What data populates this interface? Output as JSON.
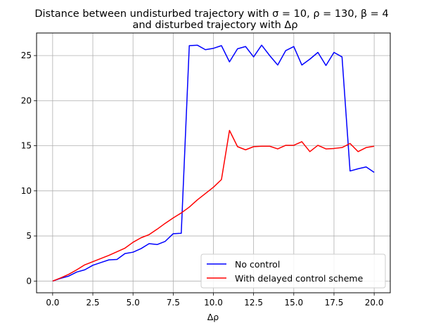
{
  "chart_data": {
    "type": "line",
    "title_line1": "Distance between undisturbed trajectory with σ = 10, ρ = 130, β = 4",
    "title_line2": "and disturbed trajectory with Δρ",
    "xlabel": "Δρ",
    "ylabel": "",
    "xlim": [
      -1.0,
      21.0
    ],
    "ylim": [
      -1.3,
      27.5
    ],
    "xticks": [
      0.0,
      2.5,
      5.0,
      7.5,
      10.0,
      12.5,
      15.0,
      17.5,
      20.0
    ],
    "xtick_labels": [
      "0.0",
      "2.5",
      "5.0",
      "7.5",
      "10.0",
      "12.5",
      "15.0",
      "17.5",
      "20.0"
    ],
    "yticks": [
      0,
      5,
      10,
      15,
      20,
      25
    ],
    "ytick_labels": [
      "0",
      "5",
      "10",
      "15",
      "20",
      "25"
    ],
    "grid": true,
    "legend_position": "lower-right",
    "x": [
      0.0,
      0.5,
      1.0,
      1.5,
      2.0,
      2.5,
      3.0,
      3.5,
      4.0,
      4.5,
      5.0,
      5.5,
      6.0,
      6.5,
      7.0,
      7.5,
      8.0,
      8.5,
      9.0,
      9.5,
      10.0,
      10.5,
      11.0,
      11.5,
      12.0,
      12.5,
      13.0,
      13.5,
      14.0,
      14.5,
      15.0,
      15.5,
      16.0,
      16.5,
      17.0,
      17.5,
      18.0,
      18.5,
      19.0,
      19.5,
      20.0
    ],
    "series": [
      {
        "name": "No control",
        "color": "#0000ff",
        "values": [
          0.0,
          0.3,
          0.55,
          1.0,
          1.25,
          1.75,
          2.05,
          2.35,
          2.4,
          3.05,
          3.2,
          3.6,
          4.15,
          4.05,
          4.4,
          5.25,
          5.3,
          26.1,
          26.15,
          25.65,
          25.8,
          26.1,
          24.3,
          25.75,
          26.0,
          24.85,
          26.15,
          25.0,
          23.95,
          25.55,
          26.0,
          23.95,
          24.6,
          25.35,
          23.9,
          25.35,
          24.85,
          12.2,
          12.45,
          12.65,
          12.05
        ]
      },
      {
        "name": "With delayed control scheme",
        "color": "#ff0000",
        "values": [
          0.0,
          0.35,
          0.75,
          1.25,
          1.8,
          2.15,
          2.5,
          2.85,
          3.25,
          3.65,
          4.3,
          4.8,
          5.15,
          5.75,
          6.4,
          7.0,
          7.55,
          8.2,
          9.0,
          9.7,
          10.4,
          11.25,
          16.7,
          14.9,
          14.55,
          14.9,
          14.95,
          14.95,
          14.65,
          15.05,
          15.05,
          15.45,
          14.35,
          15.05,
          14.65,
          14.7,
          14.8,
          15.25,
          14.35,
          14.8,
          14.95
        ]
      }
    ]
  }
}
